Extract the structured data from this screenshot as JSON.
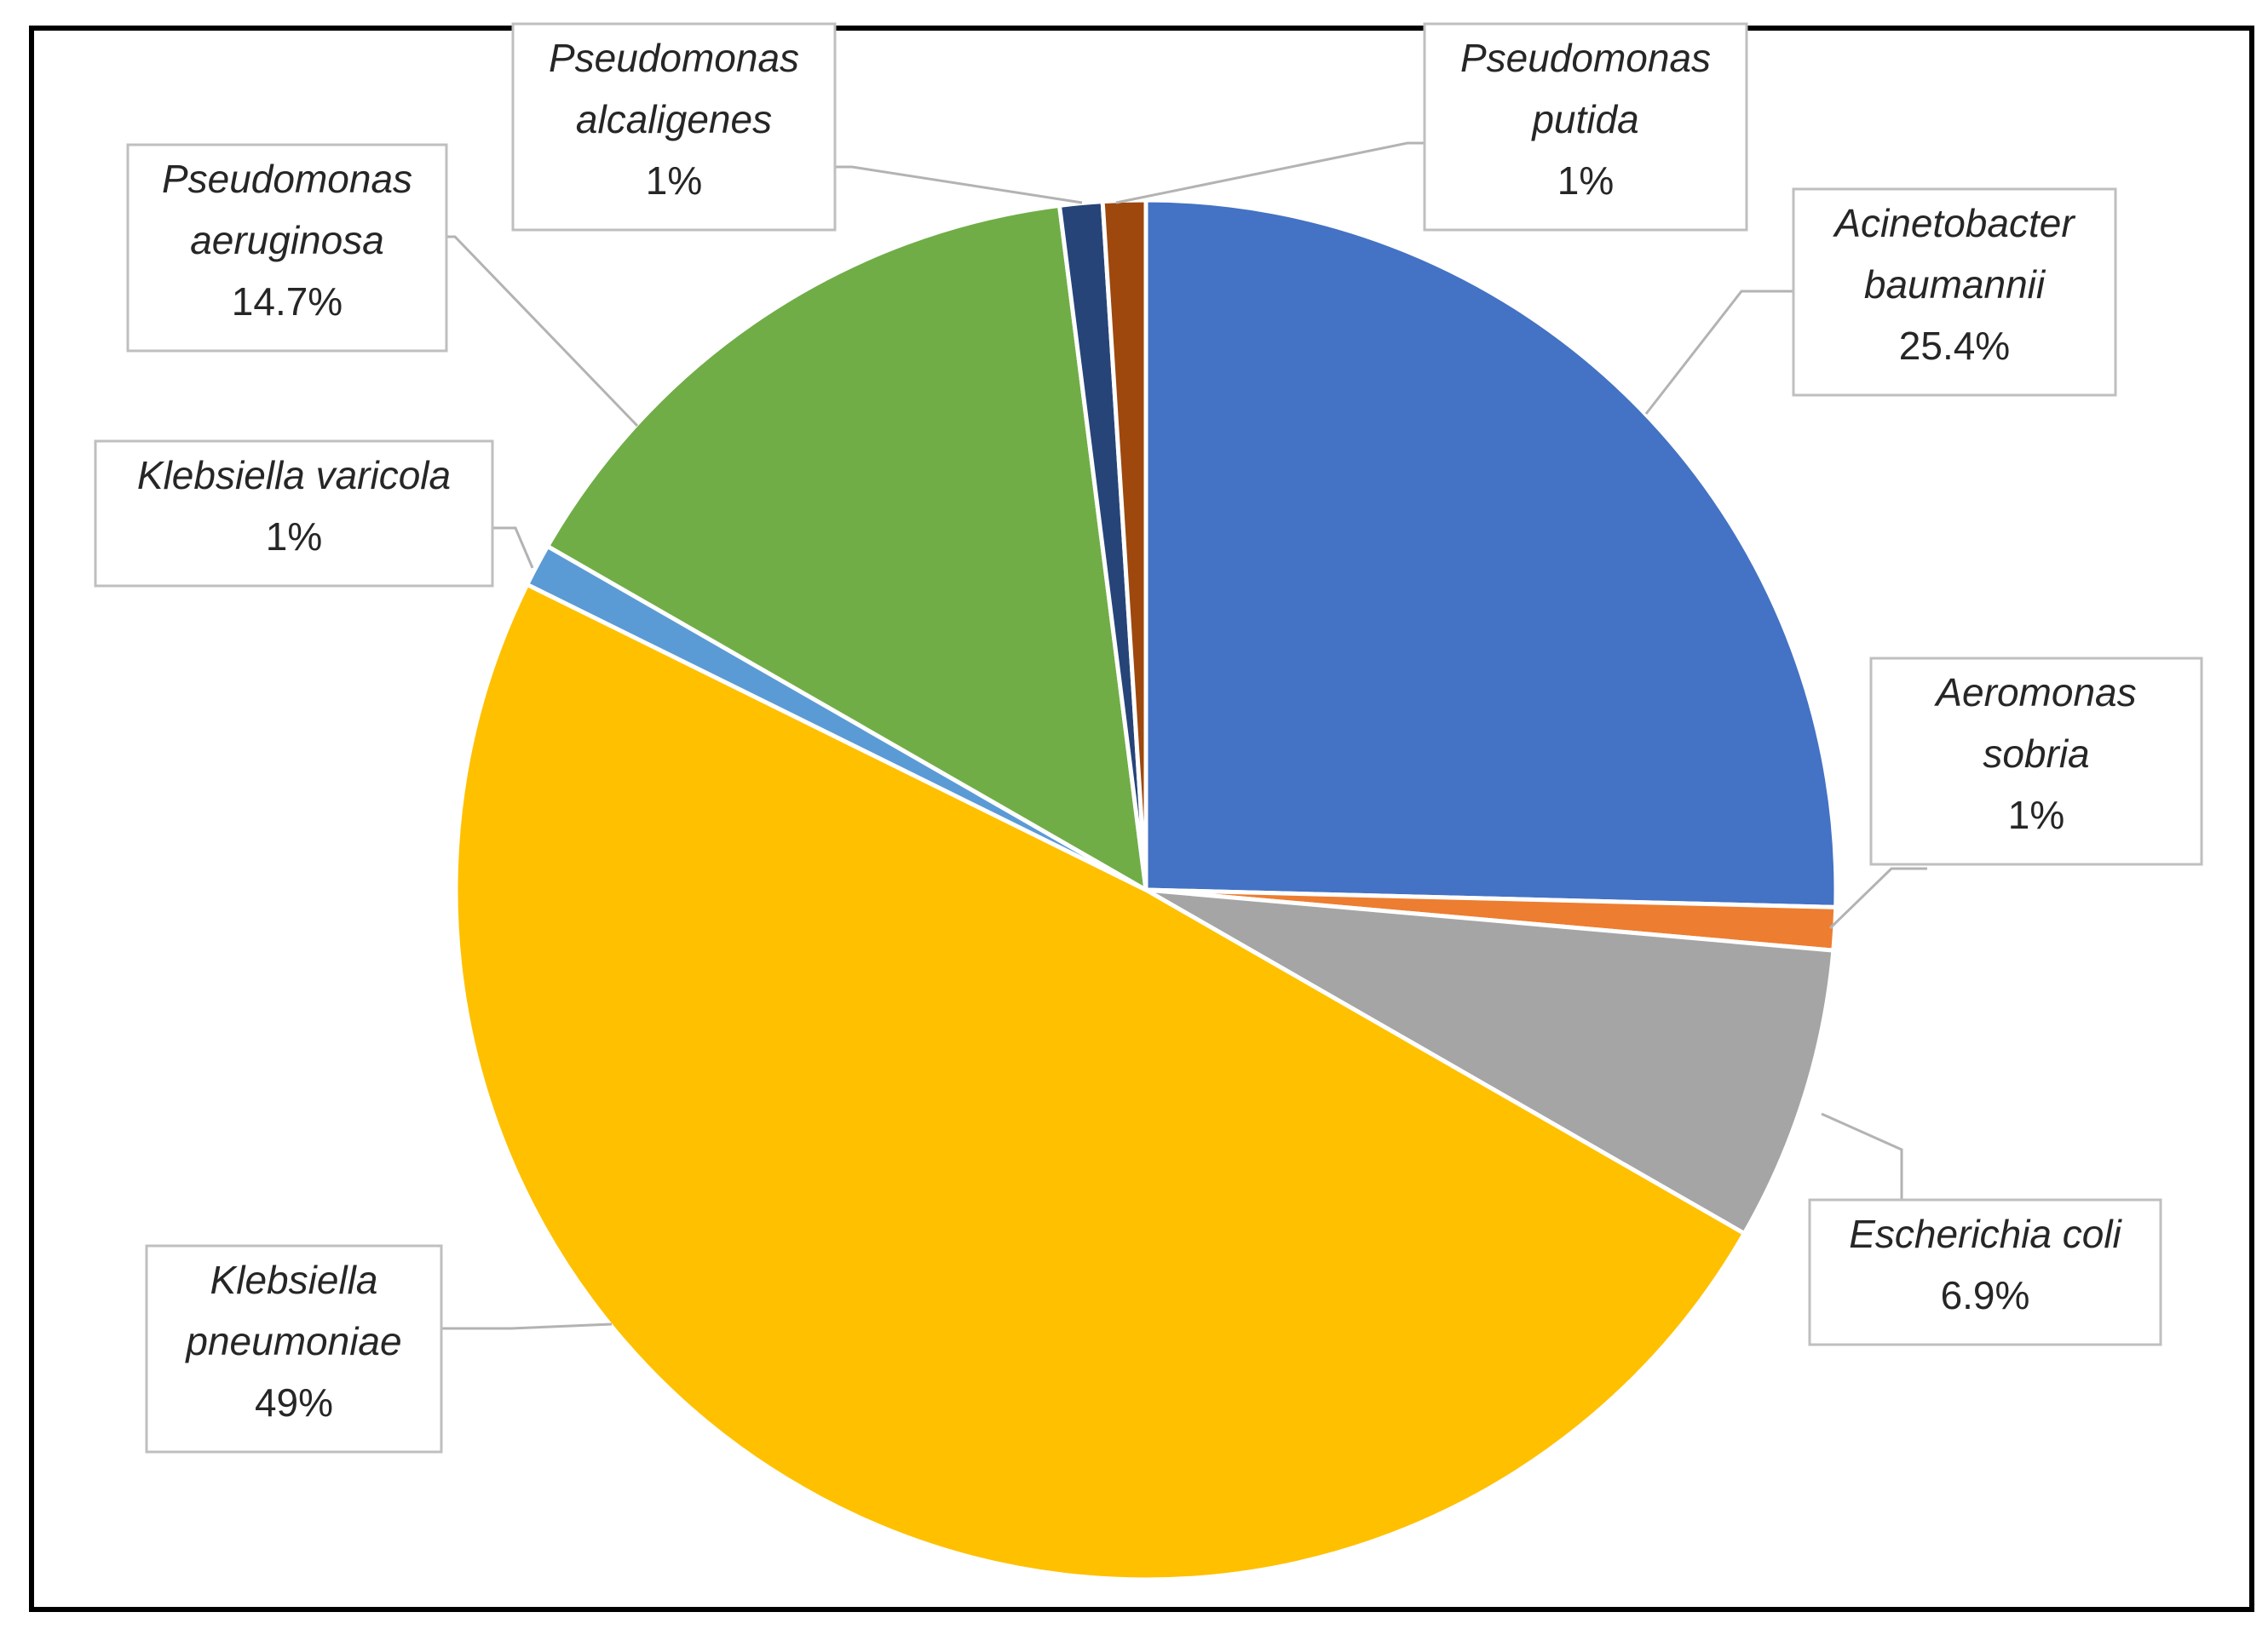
{
  "chart_data": {
    "type": "pie",
    "slices": [
      {
        "label": "Acinetobacter baumannii",
        "name_lines": [
          "Acinetobacter",
          "baumannii"
        ],
        "value_label": "25.4%",
        "value": 25.4,
        "color": "#4472c4"
      },
      {
        "label": "Aeromonas sobria",
        "name_lines": [
          "Aeromonas",
          "sobria"
        ],
        "value_label": "1%",
        "value": 1,
        "color": "#ed7d31"
      },
      {
        "label": "Escherichia coli",
        "name_lines": [
          "Escherichia coli"
        ],
        "value_label": "6.9%",
        "value": 6.9,
        "color": "#a5a5a5"
      },
      {
        "label": "Klebsiella pneumoniae",
        "name_lines": [
          "Klebsiella",
          "pneumoniae"
        ],
        "value_label": "49%",
        "value": 49,
        "color": "#ffc000"
      },
      {
        "label": "Klebsiella varicola",
        "name_lines": [
          "Klebsiella varicola"
        ],
        "value_label": "1%",
        "value": 1,
        "color": "#5b9bd5"
      },
      {
        "label": "Pseudomonas aeruginosa",
        "name_lines": [
          "Pseudomonas",
          "aeruginosa"
        ],
        "value_label": "14.7%",
        "value": 14.7,
        "color": "#70ad47"
      },
      {
        "label": "Pseudomonas alcaligenes",
        "name_lines": [
          "Pseudomonas",
          "alcaligenes"
        ],
        "value_label": "1%",
        "value": 1,
        "color": "#264478"
      },
      {
        "label": "Pseudomonas putida",
        "name_lines": [
          "Pseudomonas",
          "putida"
        ],
        "value_label": "1%",
        "value": 1,
        "color": "#9e480e"
      }
    ],
    "start": "12 o'clock",
    "direction": "clockwise",
    "legend": "none",
    "label_position": "outside with leader lines"
  }
}
